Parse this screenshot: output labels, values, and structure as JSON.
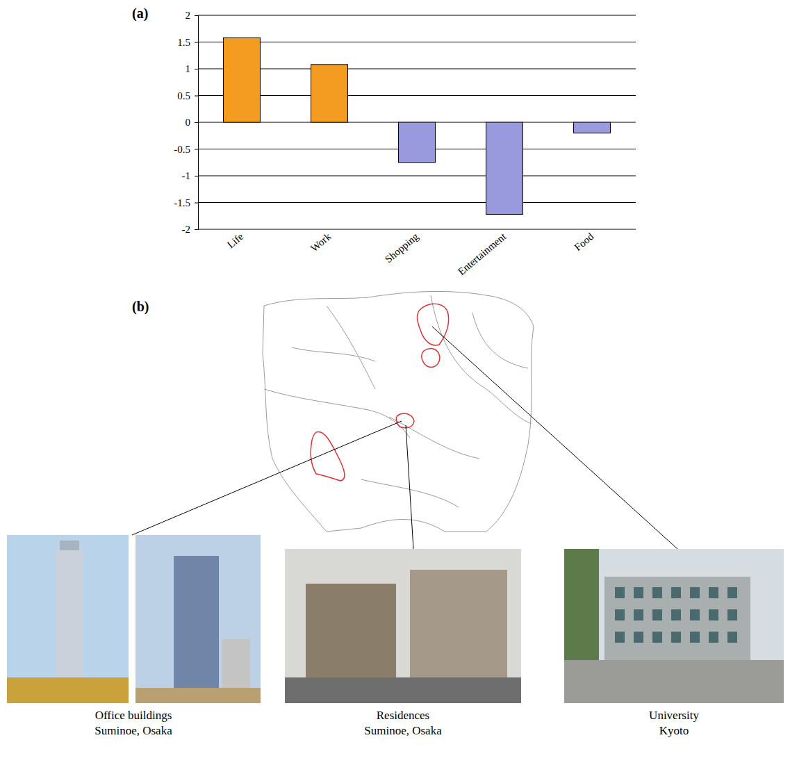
{
  "chart_data": {
    "type": "bar",
    "title": "(a)",
    "categories": [
      "Life",
      "Work",
      "Shopping",
      "Entertainment",
      "Food"
    ],
    "values": [
      1.58,
      1.08,
      -0.75,
      -1.72,
      -0.2
    ],
    "colors": [
      "#f39c1f",
      "#f39c1f",
      "#9999dd",
      "#9999dd",
      "#9999dd"
    ],
    "ylim": [
      -2,
      2
    ],
    "yticks": [
      -2,
      -1.5,
      -1,
      -0.5,
      0,
      0.5,
      1,
      1.5,
      2
    ],
    "grid": true
  },
  "map_panel": {
    "label": "(b)",
    "photos": [
      {
        "caption": [
          "Office buildings",
          "Suminoe, Osaka"
        ]
      },
      {
        "caption": [
          "Residences",
          "Suminoe, Osaka"
        ]
      },
      {
        "caption": [
          "University",
          "Kyoto"
        ]
      }
    ]
  }
}
